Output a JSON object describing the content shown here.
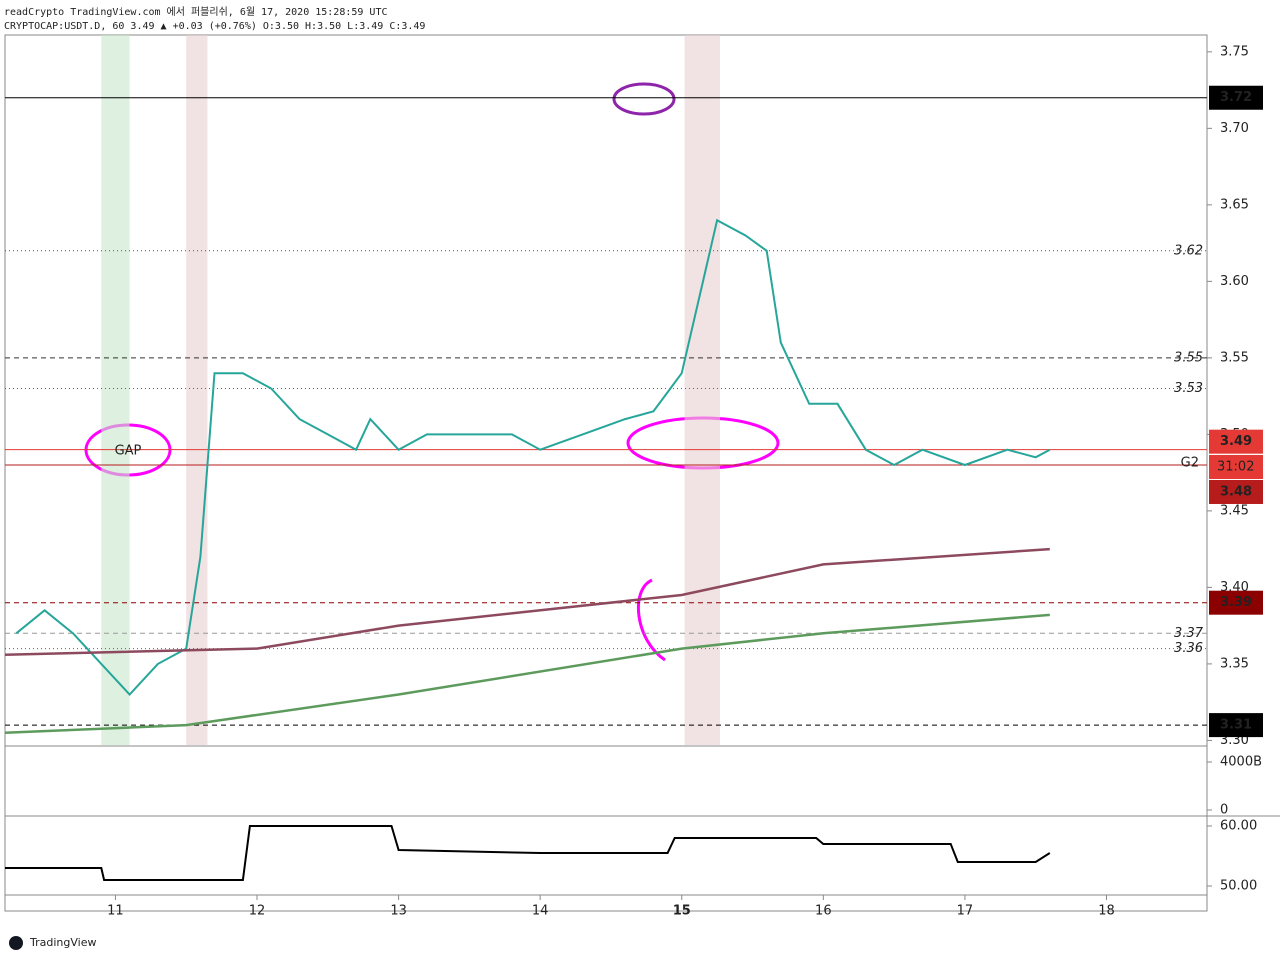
{
  "header": {
    "publisher": "readCrypto TradingView.com 에서 퍼블리쉬, 6월 17, 2020 15:28:59 UTC",
    "symbol_line": "CRYPTOCAP:USDT.D, 60 3.49 ▲ +0.03 (+0.76%) O:3.50 H:3.50 L:3.49 C:3.49"
  },
  "footer": {
    "brand": "TradingView"
  },
  "chart_data": [
    {
      "type": "line",
      "xlim": [
        10.22,
        18.71
      ],
      "xticks": [
        11,
        12,
        13,
        14,
        15,
        16,
        17,
        18
      ],
      "ylim": [
        3.297,
        3.761
      ],
      "yticks": [
        {
          "value": 3.3,
          "label": "3.30"
        },
        3.35,
        {
          "value": 3.4,
          "label": "3.40"
        },
        3.45,
        {
          "value": 3.5,
          "label": "3.50"
        },
        3.55,
        {
          "value": 3.6,
          "label": "3.60"
        },
        3.65,
        {
          "value": 3.7,
          "label": "3.70"
        },
        3.75
      ],
      "series": [
        {
          "color": "#26a69a",
          "x": [
            10.3,
            10.5,
            10.7,
            10.9,
            11.1,
            11.3,
            11.5,
            11.6,
            11.7,
            11.9,
            12.1,
            12.3,
            12.5,
            12.7,
            12.8,
            13.0,
            13.2,
            13.5,
            13.8,
            14.0,
            14.3,
            14.6,
            14.8,
            15.0,
            15.15,
            15.25,
            15.45,
            15.6,
            15.7,
            15.9,
            16.1,
            16.3,
            16.5,
            16.7,
            17.0,
            17.3,
            17.5,
            17.6
          ],
          "values": [
            3.37,
            3.385,
            3.37,
            3.35,
            3.33,
            3.35,
            3.36,
            3.42,
            3.54,
            3.54,
            3.53,
            3.51,
            3.5,
            3.49,
            3.51,
            3.49,
            3.5,
            3.5,
            3.5,
            3.49,
            3.5,
            3.51,
            3.515,
            3.54,
            3.6,
            3.64,
            3.63,
            3.62,
            3.56,
            3.52,
            3.52,
            3.49,
            3.48,
            3.49,
            3.48,
            3.49,
            3.485,
            3.49
          ]
        },
        {
          "color": "#5d9b5d",
          "x": [
            10.22,
            11.5,
            13,
            15,
            16,
            17.6
          ],
          "values": [
            3.305,
            3.31,
            3.33,
            3.36,
            3.37,
            3.382
          ]
        },
        {
          "color": "#8d4a5e",
          "x": [
            10.22,
            12,
            13,
            15,
            16,
            17.6
          ],
          "values": [
            3.356,
            3.36,
            3.375,
            3.395,
            3.415,
            3.425
          ]
        }
      ],
      "levels": [
        {
          "value": 3.72,
          "style": "solid",
          "color": "#000000",
          "boxed": true
        },
        {
          "value": 3.62,
          "style": "dotted",
          "color": "#555555",
          "boxed": false
        },
        {
          "value": 3.55,
          "style": "dashed",
          "color": "#333333",
          "boxed": false
        },
        {
          "value": 3.53,
          "style": "dotted",
          "color": "#2962ff",
          "boxed": false
        },
        {
          "value": 3.49,
          "style": "solid",
          "color": "#e53935",
          "boxed": true
        },
        {
          "value": 3.48,
          "style": "solid",
          "color": "#b71c1c",
          "boxed": true
        },
        {
          "value": 3.39,
          "style": "dashed",
          "color": "#8b0000",
          "boxed": true
        },
        {
          "value": 3.37,
          "style": "dashed",
          "color": "#999999",
          "boxed": false
        },
        {
          "value": 3.36,
          "style": "dotted",
          "color": "#2962ff",
          "boxed": false
        },
        {
          "value": 3.31,
          "style": "dashed",
          "color": "#000000",
          "boxed": true
        }
      ],
      "highlights": [
        {
          "x": [
            10.9,
            11.1
          ],
          "color": "#c8e6c9"
        },
        {
          "x": [
            11.5,
            11.65
          ],
          "color": "#e8cfd0"
        },
        {
          "x": [
            15.02,
            15.27
          ],
          "color": "#e8cfd0"
        }
      ],
      "annotations": {
        "gap": "GAP",
        "grid_label": "G2",
        "countdown": "31:02"
      }
    },
    {
      "type": "line",
      "xlim": [
        10.22,
        18.71
      ],
      "ylim": [
        48.5,
        61.33
      ],
      "yticks": [
        {
          "value": 60,
          "label": "60.00"
        },
        {
          "value": 50,
          "label": "50.00"
        }
      ],
      "series": [
        {
          "color": "#000000",
          "x": [
            10.22,
            10.9,
            10.92,
            11.9,
            11.95,
            12.95,
            13.0,
            14.0,
            14.9,
            14.95,
            15.95,
            16.0,
            16.9,
            16.95,
            17.5,
            17.6
          ],
          "values": [
            53,
            53,
            51,
            51,
            60,
            60,
            56,
            55.5,
            55.5,
            58,
            58,
            57,
            57,
            54,
            54,
            55.5
          ]
        }
      ]
    },
    {
      "type": "area",
      "xlim": [
        10.22,
        18.71
      ],
      "ylim": [
        -417,
        5167
      ],
      "yticks": [
        {
          "value": 4000,
          "label": "4000B"
        },
        0
      ]
    }
  ]
}
